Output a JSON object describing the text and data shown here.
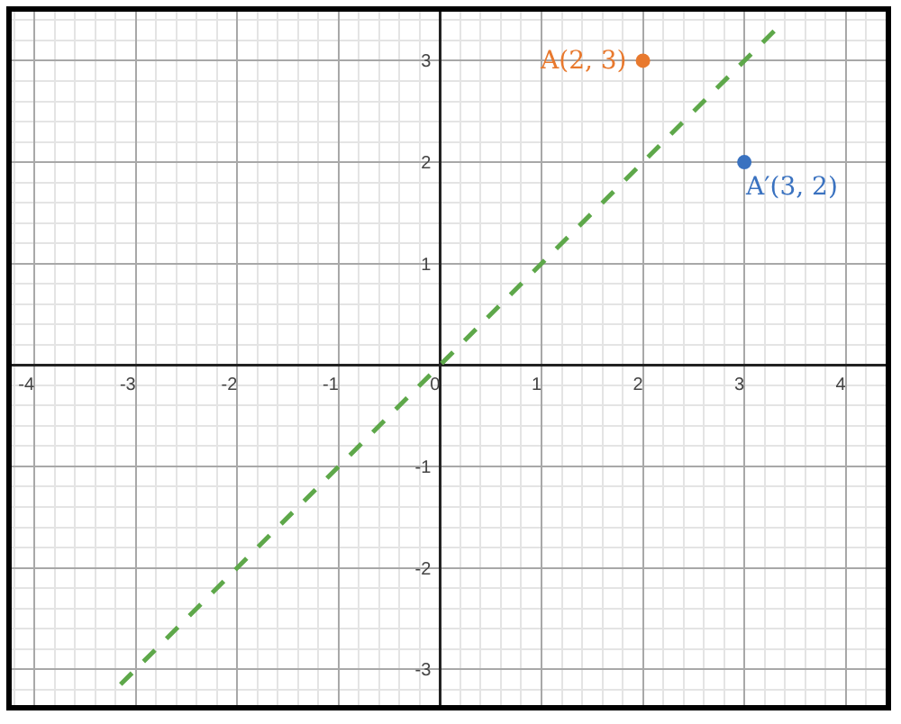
{
  "chart_data": {
    "type": "scatter",
    "xlim": [
      -4.25,
      4.42
    ],
    "ylim": [
      -3.38,
      3.51
    ],
    "xticks": [
      -4,
      -3,
      -2,
      -1,
      0,
      1,
      2,
      3,
      4
    ],
    "yticks": [
      -3,
      -2,
      -1,
      1,
      2,
      3
    ],
    "grid": true,
    "marker": "circle",
    "series": [
      {
        "type": "line",
        "color": "#5ea84a",
        "line_style": "dashed",
        "marker": "none",
        "x": [
          -3.15,
          3.3
        ],
        "values": [
          -3.15,
          3.3
        ]
      },
      {
        "type": "scatter",
        "color": "#e8792e",
        "x": [
          2
        ],
        "values": [
          3
        ]
      },
      {
        "type": "scatter",
        "color": "#3a72c0",
        "x": [
          3
        ],
        "values": [
          2
        ]
      }
    ],
    "annotations": [
      {
        "text": "A(2, 3)",
        "x": 2,
        "y": 3
      },
      {
        "text": "A′(3, 2)",
        "x": 3,
        "y": 2
      }
    ]
  }
}
